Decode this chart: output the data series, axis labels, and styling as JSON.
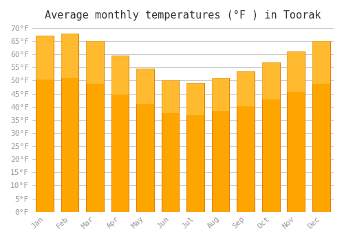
{
  "title": "Average monthly temperatures (°F ) in Toorak",
  "months": [
    "Jan",
    "Feb",
    "Mar",
    "Apr",
    "May",
    "Jun",
    "Jul",
    "Aug",
    "Sep",
    "Oct",
    "Nov",
    "Dec"
  ],
  "values": [
    67.0,
    68.0,
    65.0,
    59.5,
    54.5,
    50.0,
    49.0,
    51.0,
    53.5,
    57.0,
    61.0,
    65.0
  ],
  "bar_color": "#FFA500",
  "bar_edge_color": "#E08000",
  "background_color": "#FFFFFF",
  "grid_color": "#CCCCCC",
  "ylim": [
    0,
    70
  ],
  "yticks": [
    0,
    5,
    10,
    15,
    20,
    25,
    30,
    35,
    40,
    45,
    50,
    55,
    60,
    65,
    70
  ],
  "ytick_labels": [
    "0°F",
    "5°F",
    "10°F",
    "15°F",
    "20°F",
    "25°F",
    "30°F",
    "35°F",
    "40°F",
    "45°F",
    "50°F",
    "55°F",
    "60°F",
    "65°F",
    "70°F"
  ],
  "title_fontsize": 11,
  "tick_fontsize": 8,
  "tick_color": "#999999",
  "axis_color": "#999999"
}
